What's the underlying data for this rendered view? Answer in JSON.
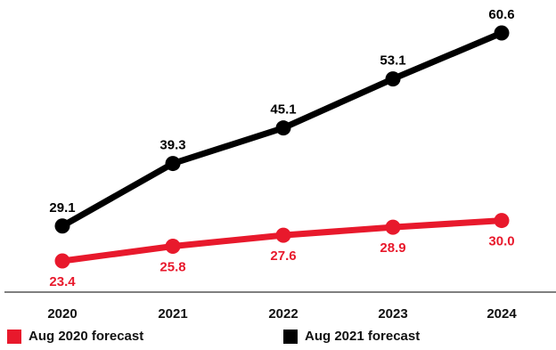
{
  "colors": {
    "aug2020": "#e8192c",
    "aug2021": "#000000",
    "axis": "#555555"
  },
  "legend": [
    {
      "label": "Aug 2020 forecast",
      "color": "#e8192c"
    },
    {
      "label": "Aug 2021 forecast",
      "color": "#000000"
    }
  ],
  "chart_data": {
    "type": "line",
    "title": "",
    "xlabel": "",
    "ylabel": "",
    "x": [
      "2020",
      "2021",
      "2022",
      "2023",
      "2024"
    ],
    "ylim": [
      15,
      65
    ],
    "grid": false,
    "legend_position": "bottom",
    "series": [
      {
        "name": "Aug 2020 forecast",
        "color": "#e8192c",
        "values": [
          23.4,
          25.8,
          27.6,
          28.9,
          30.0
        ],
        "labels": [
          "23.4",
          "25.8",
          "27.6",
          "28.9",
          "30.0"
        ]
      },
      {
        "name": "Aug 2021 forecast",
        "color": "#000000",
        "values": [
          29.1,
          39.3,
          45.1,
          53.1,
          60.6
        ],
        "labels": [
          "29.1",
          "39.3",
          "45.1",
          "53.1",
          "60.6"
        ]
      }
    ]
  }
}
